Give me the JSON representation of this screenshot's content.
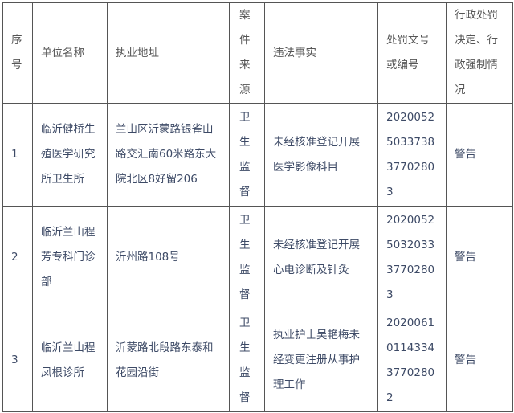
{
  "header": {
    "index": "序\n号",
    "unit_name": "单位名称",
    "address": "执业地址",
    "case_source": "案\n件\n来\n源",
    "violation": "违法事实",
    "doc_number": "处罚文号\n或编号",
    "decision": "行政处罚\n决定、行\n政强制情\n况"
  },
  "rows": [
    {
      "index": "1",
      "unit_name": "临沂健桥生\n殖医学研究\n所卫生所",
      "address": "兰山区沂蒙路银雀山\n路交汇南60米路东大\n院北区8好留206",
      "case_source": "卫\n生\n监\n督",
      "violation": "未经核准登记开展\n医学影像科目",
      "doc_number": "2020052\n5033738\n3770280\n3",
      "decision": "警告"
    },
    {
      "index": "2",
      "unit_name": "临沂兰山程\n芳专科门诊\n部",
      "address": "沂州路108号",
      "case_source": "卫\n生\n监\n督",
      "violation": "未经核准登记开展\n心电诊断及针灸",
      "doc_number": "2020052\n5032033\n3770280\n3",
      "decision": "警告"
    },
    {
      "index": "3",
      "unit_name": "临沂兰山程\n凤根诊所",
      "address": "沂蒙路北段路东泰和\n花园沿街",
      "case_source": "卫\n生\n监\n督",
      "violation": "执业护士吴艳梅未\n经变更注册从事护\n理工作",
      "doc_number": "2020061\n0114334\n3770280\n2",
      "decision": "警告"
    }
  ]
}
